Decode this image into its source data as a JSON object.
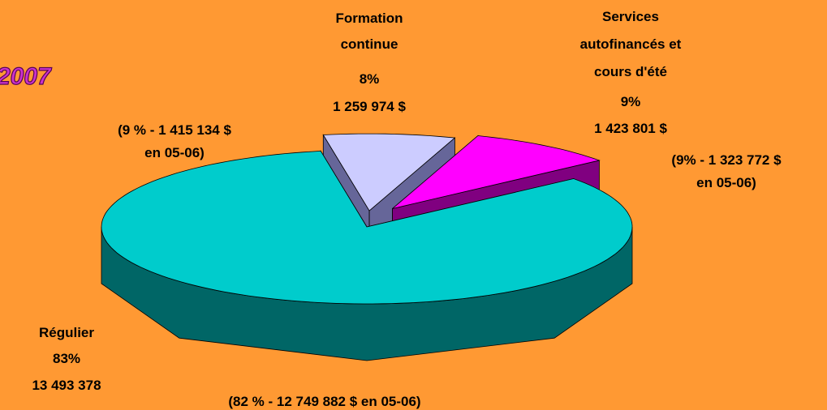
{
  "chart_data": {
    "type": "pie",
    "title": "2007",
    "categories": [
      "Régulier",
      "Formation\ncontinue",
      "Services\nautofinancés et\ncours d'été"
    ],
    "values": [
      83,
      8,
      9
    ],
    "value_labels": [
      "83%",
      "8%",
      "9%"
    ],
    "amount_labels": [
      "13 493 378",
      "1 259 974 $",
      "1 423 801 $"
    ],
    "annotations": [
      "(82 % - 12 749 882 $ en 05-06)",
      "(9 % - 1 415 134 $\nen 05-06)",
      "(9% - 1 323 772 $\nen 05-06)"
    ],
    "colors": [
      "#00cccc",
      "#ccccff",
      "#ff00ff"
    ],
    "side_colors": [
      "#006666",
      "#666699",
      "#800080"
    ]
  }
}
